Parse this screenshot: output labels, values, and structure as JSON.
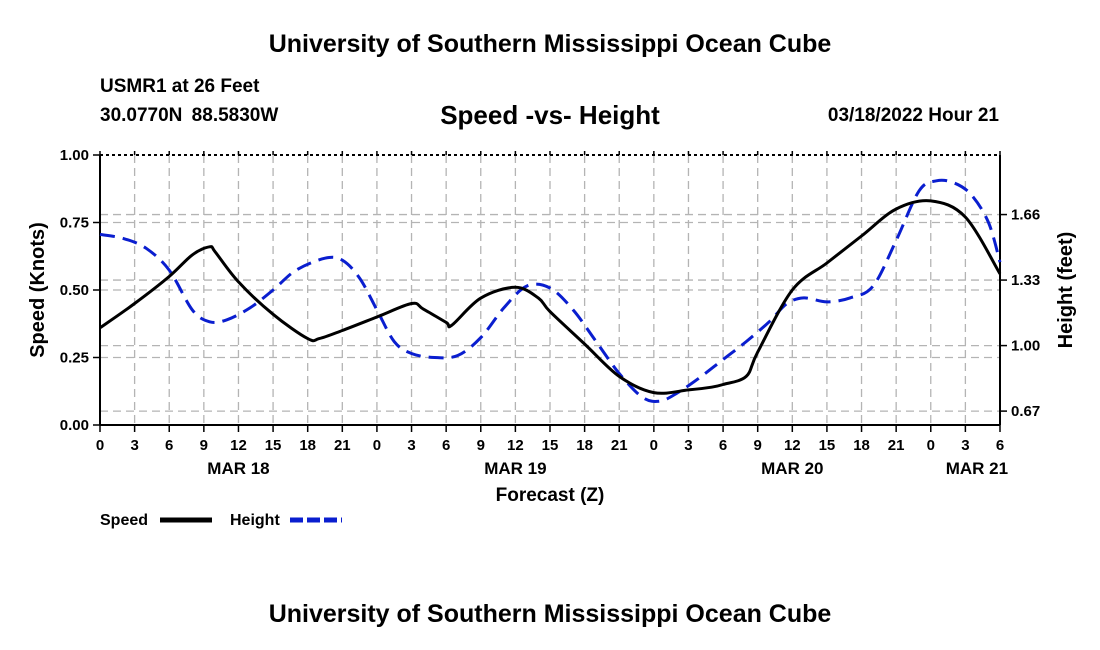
{
  "header": {
    "title": "University of Southern Mississippi Ocean Cube",
    "station": "USMR1 at 26 Feet",
    "coordinates": "30.0770N  88.5830W",
    "chart_title": "Speed -vs- Height",
    "timestamp": "03/18/2022 Hour 21"
  },
  "footer": {
    "title": "University of Southern Mississippi Ocean Cube"
  },
  "colors": {
    "speed": "#000000",
    "height": "#0a1ecf",
    "grid": "#b4b4b4"
  },
  "chart_data": {
    "type": "line",
    "title": "Speed -vs- Height",
    "xlabel": "Forecast (Z)",
    "ylabel": "Speed (Knots)",
    "y2label": "Height (feet)",
    "x_unit": "hours since MAR 18 00Z",
    "xlim": [
      0,
      78
    ],
    "ylim": [
      0,
      1.0
    ],
    "y2lim": [
      0.6,
      1.96
    ],
    "x_ticks": [
      0,
      3,
      6,
      9,
      12,
      15,
      18,
      21,
      24,
      27,
      30,
      33,
      36,
      39,
      42,
      45,
      48,
      51,
      54,
      57,
      60,
      63,
      66,
      69,
      72,
      75,
      78
    ],
    "x_tick_labels": [
      "0",
      "3",
      "6",
      "9",
      "12",
      "15",
      "18",
      "21",
      "0",
      "3",
      "6",
      "9",
      "12",
      "15",
      "18",
      "21",
      "0",
      "3",
      "6",
      "9",
      "12",
      "15",
      "18",
      "21",
      "0",
      "3",
      "6"
    ],
    "date_labels": [
      {
        "x": 12,
        "label": "MAR 18"
      },
      {
        "x": 36,
        "label": "MAR 19"
      },
      {
        "x": 60,
        "label": "MAR 20"
      },
      {
        "x": 76,
        "label": "MAR 21"
      }
    ],
    "y_ticks": [
      0.0,
      0.25,
      0.5,
      0.75,
      1.0
    ],
    "y_tick_labels": [
      "0.00",
      "0.25",
      "0.50",
      "0.75",
      "1.00"
    ],
    "y2_ticks": [
      0.67,
      1.0,
      1.33,
      1.66
    ],
    "y2_tick_labels": [
      "0.67",
      "1.00",
      "1.33",
      "1.66"
    ],
    "legend": [
      {
        "name": "Speed",
        "series": "speed"
      },
      {
        "name": "Height",
        "series": "height"
      }
    ],
    "series": [
      {
        "name": "Speed",
        "key": "speed",
        "axis": "left",
        "style": "solid",
        "x": [
          0,
          3,
          6,
          8,
          9.5,
          10,
          12,
          15,
          18,
          19,
          21,
          24,
          27,
          28,
          30,
          30.5,
          33,
          36,
          38,
          39,
          42,
          45,
          48,
          51,
          53,
          54,
          56,
          57,
          60,
          63,
          66,
          69,
          72,
          75,
          78
        ],
        "values": [
          0.36,
          0.45,
          0.55,
          0.63,
          0.66,
          0.64,
          0.53,
          0.41,
          0.32,
          0.32,
          0.35,
          0.4,
          0.45,
          0.43,
          0.38,
          0.37,
          0.47,
          0.51,
          0.47,
          0.42,
          0.3,
          0.18,
          0.12,
          0.13,
          0.14,
          0.15,
          0.18,
          0.27,
          0.5,
          0.6,
          0.7,
          0.8,
          0.83,
          0.77,
          0.56
        ]
      },
      {
        "name": "Height",
        "key": "height",
        "axis": "right",
        "style": "dashed",
        "x": [
          0,
          2,
          4,
          6,
          8,
          9.5,
          11,
          13,
          15,
          17,
          19.5,
          21,
          22.5,
          24,
          25.5,
          27,
          29,
          31,
          33,
          35,
          37,
          39,
          41,
          43,
          45,
          47,
          48.5,
          50,
          52,
          54,
          56,
          58,
          59.5,
          61,
          63,
          65,
          67,
          69,
          71,
          72.5,
          74,
          75.5,
          77,
          78
        ],
        "values": [
          1.56,
          1.54,
          1.49,
          1.38,
          1.18,
          1.12,
          1.13,
          1.19,
          1.28,
          1.38,
          1.44,
          1.43,
          1.34,
          1.18,
          1.02,
          0.96,
          0.94,
          0.95,
          1.04,
          1.19,
          1.3,
          1.29,
          1.18,
          1.02,
          0.86,
          0.74,
          0.72,
          0.76,
          0.84,
          0.93,
          1.02,
          1.12,
          1.21,
          1.24,
          1.22,
          1.24,
          1.3,
          1.53,
          1.78,
          1.83,
          1.82,
          1.76,
          1.62,
          1.42
        ]
      }
    ]
  }
}
